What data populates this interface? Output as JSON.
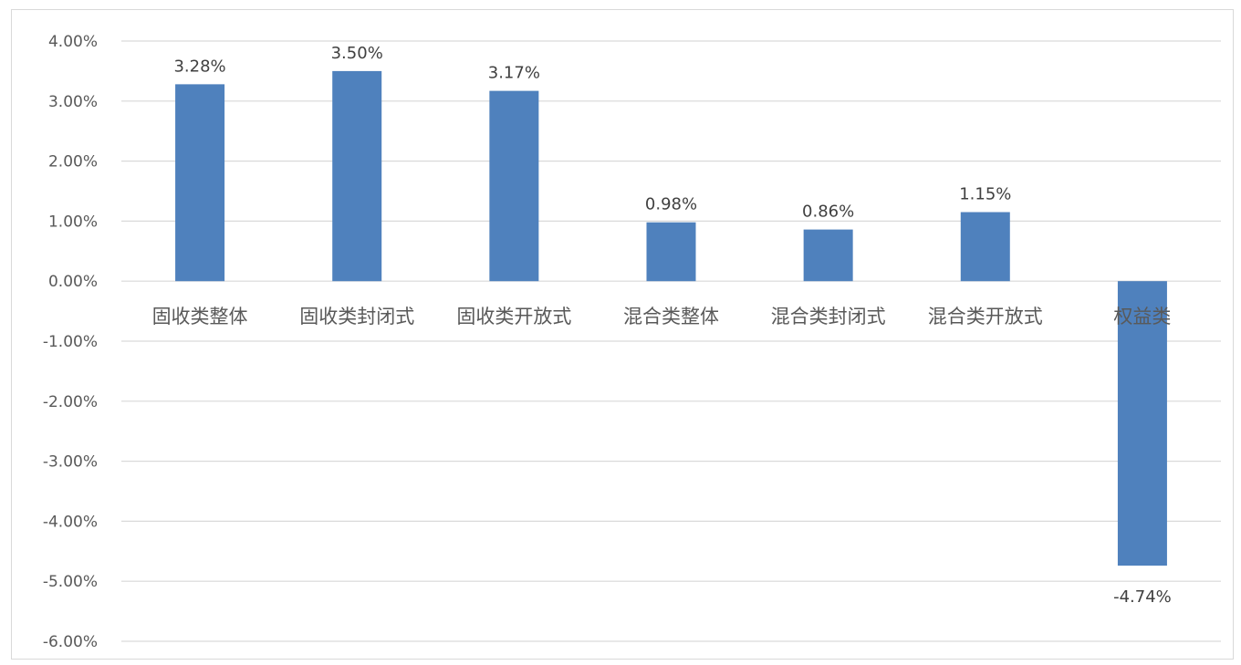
{
  "chart_data": {
    "type": "bar",
    "categories": [
      "固收类整体",
      "固收类封闭式",
      "固收类开放式",
      "混合类整体",
      "混合类封闭式",
      "混合类开放式",
      "权益类"
    ],
    "values": [
      3.28,
      3.5,
      3.17,
      0.98,
      0.86,
      1.15,
      -4.74
    ],
    "data_labels": [
      "3.28%",
      "3.50%",
      "3.17%",
      "0.98%",
      "0.86%",
      "1.15%",
      "-4.74%"
    ],
    "y_ticks": [
      4,
      3,
      2,
      1,
      0,
      -1,
      -2,
      -3,
      -4,
      -5,
      -6
    ],
    "y_tick_labels": [
      "4.00%",
      "3.00%",
      "2.00%",
      "1.00%",
      "0.00%",
      "-1.00%",
      "-2.00%",
      "-3.00%",
      "-4.00%",
      "-5.00%",
      "-6.00%"
    ],
    "ylim": [
      -6,
      4
    ],
    "grid": true,
    "legend": "none",
    "title": "",
    "xlabel": "",
    "ylabel": "",
    "bar_color": "#4F81BD",
    "grid_color": "#d9d9d9"
  }
}
